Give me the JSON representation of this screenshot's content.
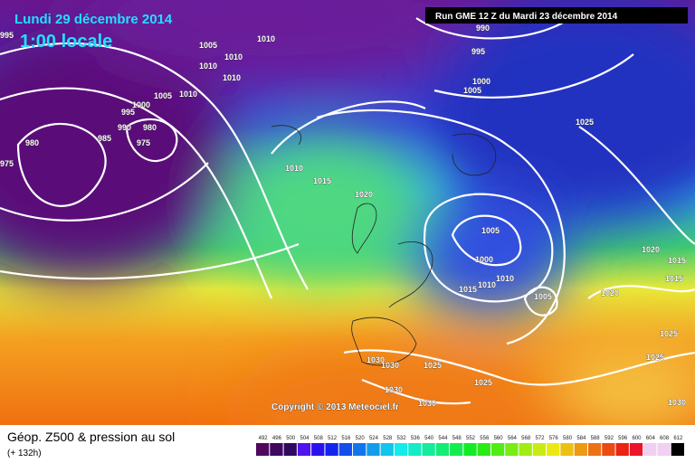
{
  "header": {
    "date": "Lundi 29 décembre 2014",
    "time": "1:00 locale",
    "run": "Run GME 12 Z du Mardi 23 décembre 2014"
  },
  "map": {
    "copyright": "Copyright © 2013 Meteociel.fr",
    "isobar_labels": [
      "995",
      "1005",
      "1010",
      "1010",
      "1010",
      "1010",
      "1005",
      "1010",
      "1000",
      "995",
      "990",
      "980",
      "975",
      "985",
      "980",
      "975",
      "990",
      "995",
      "1000",
      "1005",
      "1025",
      "1010",
      "1015",
      "1020",
      "1005",
      "1000",
      "1010",
      "1015",
      "1010",
      "1005",
      "1020",
      "1020",
      "1015",
      "1015",
      "1025",
      "1025",
      "1030",
      "1030",
      "1025",
      "1025",
      "1030",
      "1030",
      "1030"
    ]
  },
  "footer": {
    "title": "Géop. Z500 & pression au sol",
    "lead": "(+ 132h)"
  },
  "legend": {
    "levels": [
      492,
      496,
      500,
      504,
      508,
      512,
      516,
      520,
      524,
      528,
      532,
      536,
      540,
      544,
      548,
      552,
      556,
      560,
      564,
      568,
      572,
      576,
      580,
      584,
      588,
      592,
      596,
      600,
      604,
      608,
      612
    ]
  }
}
